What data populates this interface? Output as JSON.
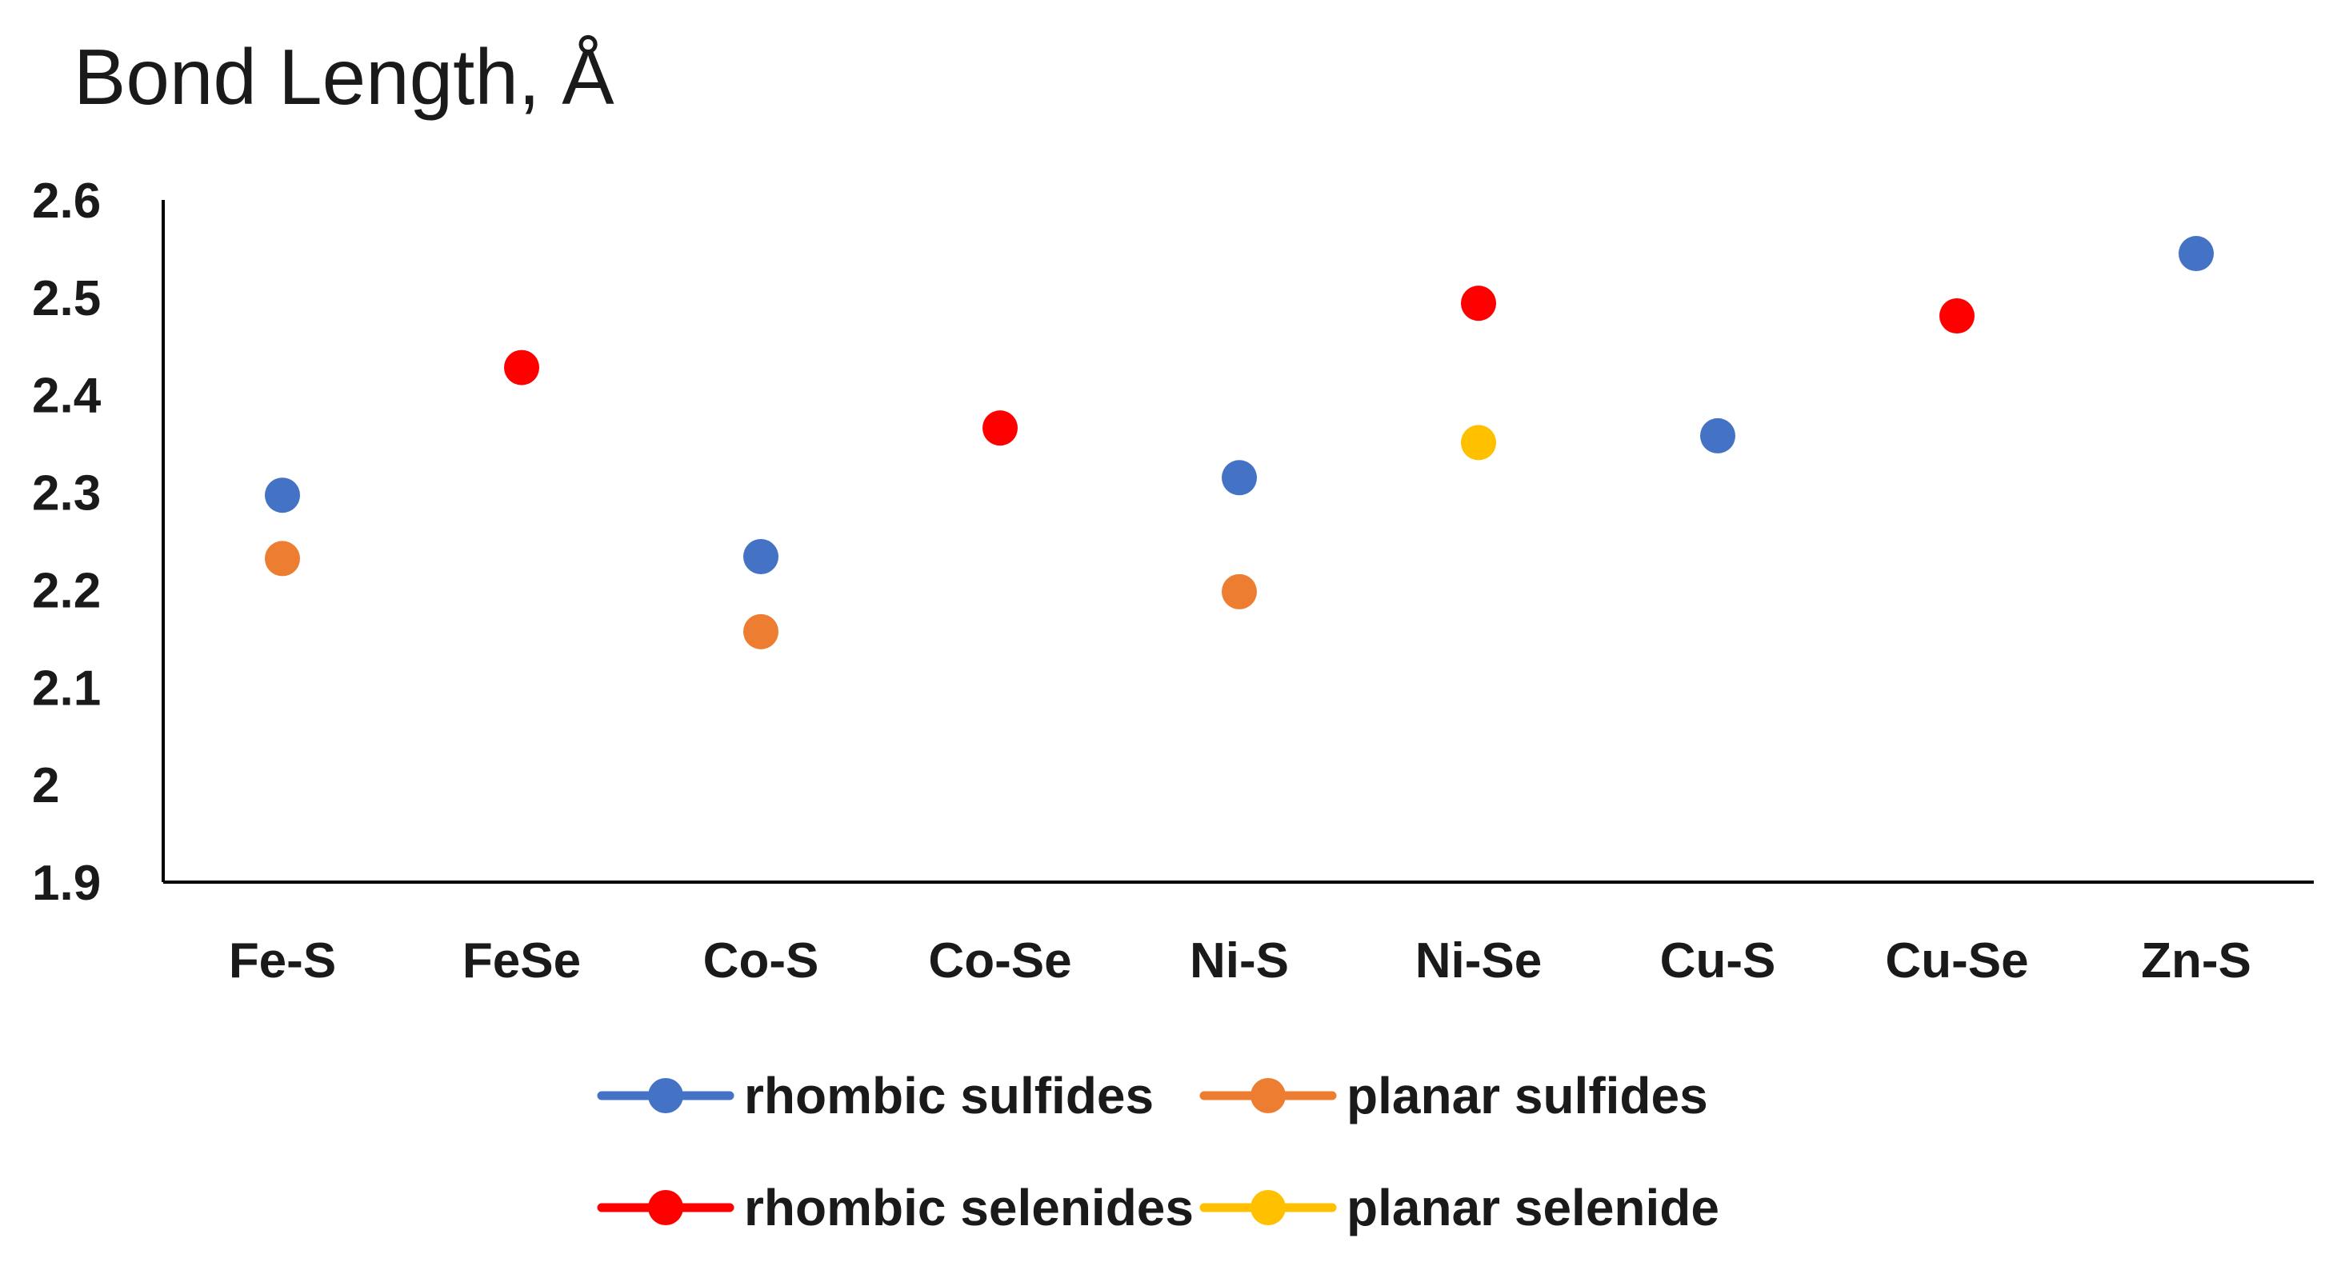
{
  "chart_data": {
    "type": "scatter",
    "title": "Bond Length, Å",
    "xlabel": "",
    "ylabel": "",
    "categories": [
      "Fe-S",
      "FeSe",
      "Co-S",
      "Co-Se",
      "Ni-S",
      "Ni-Se",
      "Cu-S",
      "Cu-Se",
      "Zn-S"
    ],
    "ylim": [
      1.9,
      2.6
    ],
    "yticks": [
      1.9,
      2,
      2.1,
      2.2,
      2.3,
      2.4,
      2.5,
      2.6
    ],
    "ytick_labels": [
      "1.9",
      "2",
      "2.1",
      "2.2",
      "2.3",
      "2.4",
      "2.5",
      "2.6"
    ],
    "grid": false,
    "legend_position": "bottom",
    "series": [
      {
        "name": "rhombic sulfides",
        "color": "#4472C4",
        "values": [
          2.297,
          null,
          2.234,
          null,
          2.315,
          null,
          2.358,
          null,
          2.545
        ]
      },
      {
        "name": "planar sulfides",
        "color": "#ED7D31",
        "values": [
          2.232,
          null,
          2.157,
          null,
          2.198,
          null,
          null,
          null,
          null
        ]
      },
      {
        "name": "rhombic selenides",
        "color": "#FF0000",
        "values": [
          null,
          2.428,
          null,
          2.366,
          null,
          2.494,
          null,
          2.481,
          null
        ]
      },
      {
        "name": "planar selenide",
        "color": "#FFC000",
        "values": [
          null,
          null,
          null,
          null,
          null,
          2.351,
          null,
          null,
          null
        ]
      }
    ]
  }
}
